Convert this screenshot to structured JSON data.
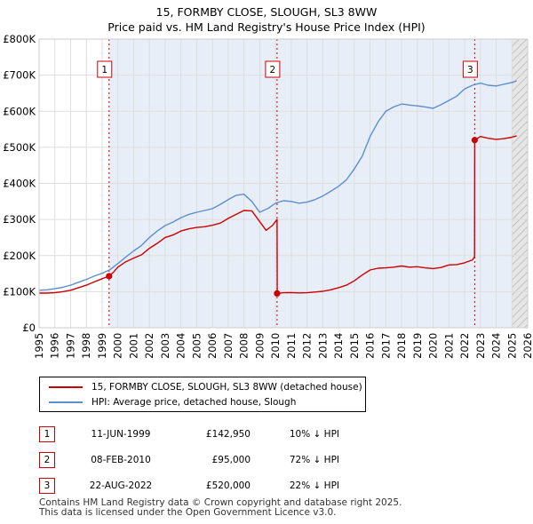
{
  "chart_data": {
    "type": "line",
    "title": "15, FORMBY CLOSE, SLOUGH, SL3 8WW",
    "subtitle": "Price paid vs. HM Land Registry's House Price Index (HPI)",
    "x_range": [
      1995,
      2026
    ],
    "ylim": [
      0,
      800000
    ],
    "y_ticks": [
      0,
      100000,
      200000,
      300000,
      400000,
      500000,
      600000,
      700000,
      800000
    ],
    "y_tick_labels": [
      "£0",
      "£100K",
      "£200K",
      "£300K",
      "£400K",
      "£500K",
      "£600K",
      "£700K",
      "£800K"
    ],
    "x_ticks": [
      1995,
      1996,
      1997,
      1998,
      1999,
      2000,
      2001,
      2002,
      2003,
      2004,
      2005,
      2006,
      2007,
      2008,
      2009,
      2010,
      2011,
      2012,
      2013,
      2014,
      2015,
      2016,
      2017,
      2018,
      2019,
      2020,
      2021,
      2022,
      2023,
      2024,
      2025,
      2026
    ],
    "x_tick_labels": [
      "1995",
      "1996",
      "1997",
      "1998",
      "1999",
      "2000",
      "2001",
      "2002",
      "2003",
      "2004",
      "2005",
      "2006",
      "2007",
      "2008",
      "2009",
      "2010",
      "2011",
      "2012",
      "2013",
      "2014",
      "2015",
      "2016",
      "2017",
      "2018",
      "2019",
      "2020",
      "2021",
      "2022",
      "2023",
      "2024",
      "2025",
      "2026"
    ],
    "series": [
      {
        "name": "15, FORMBY CLOSE, SLOUGH, SL3 8WW (detached house)",
        "color": "#cc0000",
        "x": [
          1995.0,
          1995.5,
          1996.0,
          1996.5,
          1997.0,
          1997.5,
          1998.0,
          1998.5,
          1999.0,
          1999.45,
          1999.7,
          2000.0,
          2000.5,
          2001.0,
          2001.5,
          2002.0,
          2002.5,
          2003.0,
          2003.5,
          2004.0,
          2004.5,
          2005.0,
          2005.5,
          2006.0,
          2006.5,
          2007.0,
          2007.5,
          2008.0,
          2008.5,
          2009.0,
          2009.4,
          2009.8,
          2010.1,
          2010.11,
          2010.5,
          2011.0,
          2011.5,
          2012.0,
          2012.5,
          2013.0,
          2013.5,
          2014.0,
          2014.5,
          2015.0,
          2015.5,
          2016.0,
          2016.5,
          2017.0,
          2017.5,
          2018.0,
          2018.5,
          2019.0,
          2019.5,
          2020.0,
          2020.5,
          2021.0,
          2021.5,
          2022.0,
          2022.5,
          2022.63,
          2022.64,
          2023.0,
          2023.5,
          2024.0,
          2024.5,
          2025.0,
          2025.3
        ],
        "values": [
          96000,
          96000,
          97000,
          100000,
          104000,
          111000,
          118000,
          127000,
          136000,
          142950,
          153000,
          168000,
          183000,
          193000,
          202000,
          220000,
          234000,
          250000,
          257000,
          268000,
          274000,
          278000,
          280000,
          284000,
          290000,
          303000,
          314000,
          325000,
          324000,
          294000,
          270000,
          283000,
          300000,
          95000,
          97000,
          97500,
          96500,
          97000,
          99000,
          101000,
          105000,
          111000,
          118000,
          130000,
          146000,
          160000,
          165000,
          166000,
          168000,
          171000,
          168000,
          169000,
          166000,
          164000,
          167000,
          174000,
          175000,
          180000,
          188000,
          197000,
          520000,
          530000,
          525000,
          522000,
          524000,
          528000,
          532000
        ]
      },
      {
        "name": "HPI: Average price, detached house, Slough",
        "color": "#5b8fd0",
        "x": [
          1995.0,
          1995.5,
          1996.0,
          1996.5,
          1997.0,
          1997.5,
          1998.0,
          1998.5,
          1999.0,
          1999.5,
          2000.0,
          2000.5,
          2001.0,
          2001.5,
          2002.0,
          2002.5,
          2003.0,
          2003.5,
          2004.0,
          2004.5,
          2005.0,
          2005.5,
          2006.0,
          2006.5,
          2007.0,
          2007.5,
          2008.0,
          2008.5,
          2009.0,
          2009.5,
          2010.0,
          2010.5,
          2011.0,
          2011.5,
          2012.0,
          2012.5,
          2013.0,
          2013.5,
          2014.0,
          2014.5,
          2015.0,
          2015.5,
          2016.0,
          2016.5,
          2017.0,
          2017.5,
          2018.0,
          2018.5,
          2019.0,
          2019.5,
          2020.0,
          2020.5,
          2021.0,
          2021.5,
          2022.0,
          2022.5,
          2023.0,
          2023.5,
          2024.0,
          2024.5,
          2025.0,
          2025.3
        ],
        "values": [
          104000,
          105000,
          108000,
          112000,
          118000,
          126000,
          134000,
          143000,
          151000,
          161000,
          178000,
          196000,
          213000,
          228000,
          250000,
          268000,
          283000,
          293000,
          305000,
          314000,
          320000,
          325000,
          330000,
          342000,
          355000,
          367000,
          370000,
          350000,
          320000,
          330000,
          345000,
          352000,
          350000,
          345000,
          348000,
          355000,
          365000,
          378000,
          392000,
          410000,
          440000,
          475000,
          530000,
          570000,
          600000,
          612000,
          620000,
          617000,
          615000,
          612000,
          608000,
          618000,
          630000,
          642000,
          662000,
          672000,
          678000,
          672000,
          670000,
          675000,
          680000,
          684000
        ]
      }
    ],
    "sales": [
      {
        "num": "1",
        "x": 1999.44,
        "value": 142950
      },
      {
        "num": "2",
        "x": 2010.1,
        "value": 95000
      },
      {
        "num": "3",
        "x": 2022.64,
        "value": 520000
      }
    ],
    "future_shade_from": 2025.0
  },
  "legend": {
    "items": [
      {
        "label": "15, FORMBY CLOSE, SLOUGH, SL3 8WW (detached house)",
        "color": "#cc0000"
      },
      {
        "label": "HPI: Average price, detached house, Slough",
        "color": "#5b8fd0"
      }
    ]
  },
  "table": {
    "rows": [
      {
        "num": "1",
        "date": "11-JUN-1999",
        "price": "£142,950",
        "hpi": "10% ↓ HPI"
      },
      {
        "num": "2",
        "date": "08-FEB-2010",
        "price": "£95,000",
        "hpi": "72% ↓ HPI"
      },
      {
        "num": "3",
        "date": "22-AUG-2022",
        "price": "£520,000",
        "hpi": "22% ↓ HPI"
      }
    ]
  },
  "footer": {
    "line1": "Contains HM Land Registry data © Crown copyright and database right 2025.",
    "line2": "This data is licensed under the Open Government Licence v3.0."
  }
}
